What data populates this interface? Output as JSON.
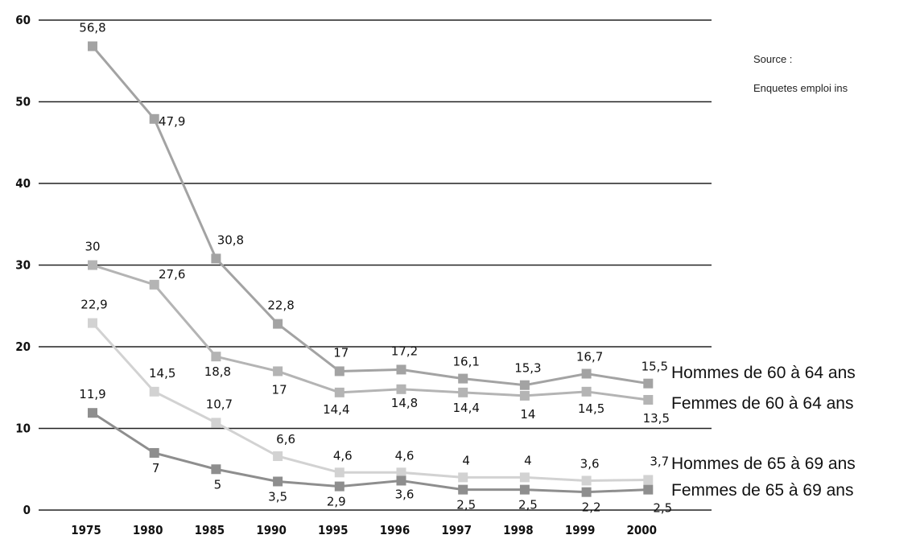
{
  "source": {
    "line1": "Source :",
    "line2": "Enquetes emploi ins"
  },
  "chart_data": {
    "type": "line",
    "categories": [
      "1975",
      "1980",
      "1985",
      "1990",
      "1995",
      "1996",
      "1997",
      "1998",
      "1999",
      "2000"
    ],
    "ylim": [
      0,
      60
    ],
    "yticks": [
      "0",
      "10",
      "20",
      "30",
      "40",
      "50",
      "60"
    ],
    "grid": true,
    "legend": "end-of-line labels on the right",
    "series": [
      {
        "name": "Hommes de 60 à 64 ans",
        "color": "#a3a3a3",
        "values": [
          56.8,
          47.9,
          30.8,
          22.8,
          17,
          17.2,
          16.1,
          15.3,
          16.7,
          15.5
        ],
        "labels": [
          "56,8",
          "47,9",
          "30,8",
          "22,8",
          "17",
          "17,2",
          "16,1",
          "15,3",
          "16,7",
          "15,5"
        ]
      },
      {
        "name": "Femmes de 60 à 64 ans",
        "color": "#b4b4b4",
        "values": [
          30,
          27.6,
          18.8,
          17,
          14.4,
          14.8,
          14.4,
          14,
          14.5,
          13.5
        ],
        "labels": [
          "30",
          "27,6",
          "18,8",
          "17",
          "14,4",
          "14,8",
          "14,4",
          "14",
          "14,5",
          "13,5"
        ]
      },
      {
        "name": "Hommes de 65 à 69 ans",
        "color": "#d2d2d2",
        "values": [
          22.9,
          14.5,
          10.7,
          6.6,
          4.6,
          4.6,
          4,
          4,
          3.6,
          3.7
        ],
        "labels": [
          "22,9",
          "14,5",
          "10,7",
          "6,6",
          "4,6",
          "4,6",
          "4",
          "4",
          "3,6",
          "3,7"
        ]
      },
      {
        "name": "Femmes de 65 à 69 ans",
        "color": "#8e8e8e",
        "values": [
          11.9,
          7,
          5,
          3.5,
          2.9,
          3.6,
          2.5,
          2.5,
          2.2,
          2.5
        ],
        "labels": [
          "11,9",
          "7",
          "5",
          "3,5",
          "2,9",
          "3,6",
          "2,5",
          "2,5",
          "2,2",
          "2,5"
        ]
      }
    ]
  }
}
